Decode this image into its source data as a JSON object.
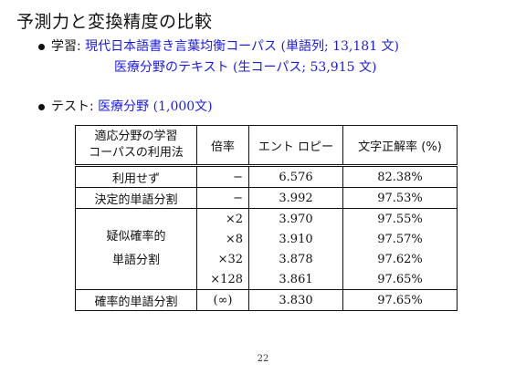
{
  "title": "予測力と変換精度の比較",
  "learning": {
    "label": "学習:",
    "line1": "現代日本語書き言葉均衡コーパス (単語列; 13,181 文)",
    "line2": "医療分野のテキスト (生コーパス; 53,915 文)"
  },
  "test": {
    "label": "テスト:",
    "value": "医療分野 (1,000文)"
  },
  "table": {
    "headers": {
      "method_line1": "適応分野の学習",
      "method_line2": "コーパスの利用法",
      "rate": "倍率",
      "entropy": "エント ロピー",
      "accuracy": "文字正解率 (%)"
    },
    "rows": [
      {
        "method": "利用せず",
        "rate": "−",
        "entropy": "6.576",
        "accuracy": "82.38%"
      },
      {
        "method": "決定的単語分割",
        "rate": "−",
        "entropy": "3.992",
        "accuracy": "97.53%"
      },
      {
        "rate": "×2",
        "entropy": "3.970",
        "accuracy": "97.55%"
      },
      {
        "rate": "×8",
        "entropy": "3.910",
        "accuracy": "97.57%"
      },
      {
        "rate": "×32",
        "entropy": "3.878",
        "accuracy": "97.62%"
      },
      {
        "rate": "×128",
        "entropy": "3.861",
        "accuracy": "97.65%"
      },
      {
        "method": "確率的単語分割",
        "rate": "(∞)",
        "entropy": "3.830",
        "accuracy": "97.65%"
      }
    ],
    "pseudo_method_line1": "疑似確率的",
    "pseudo_method_line2": "単語分割"
  },
  "page_number": "22"
}
